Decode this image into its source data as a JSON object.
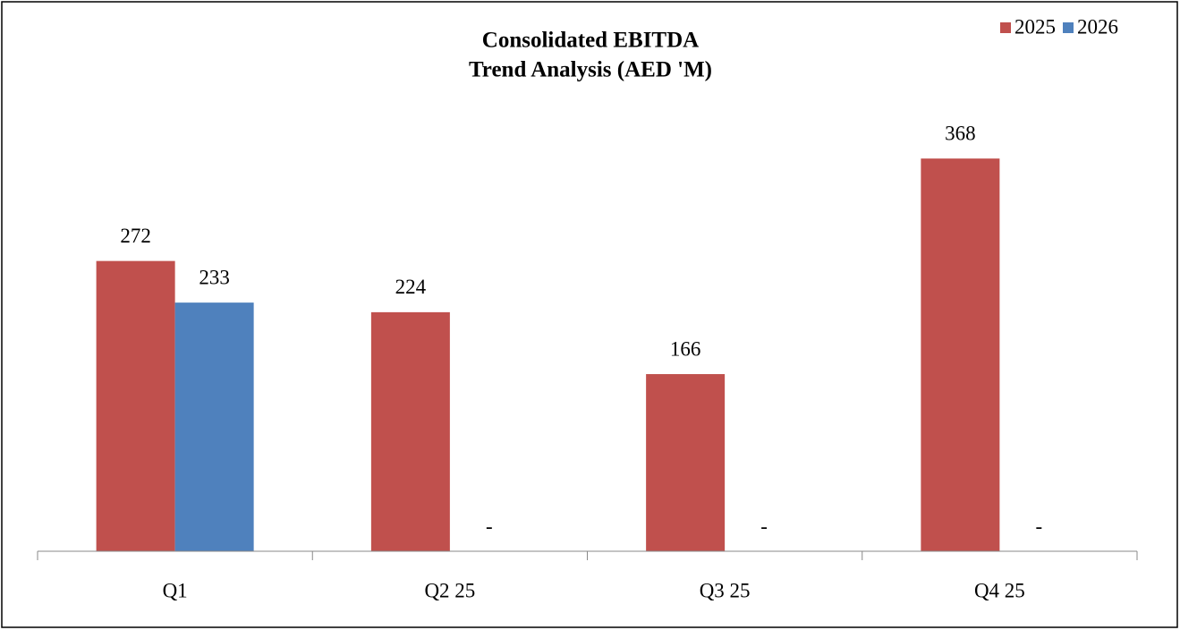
{
  "chart_data": {
    "type": "bar",
    "title": [
      "Consolidated EBITDA",
      "Trend Analysis (AED 'M)"
    ],
    "categories": [
      "Q1",
      "Q2 25",
      "Q3 25",
      "Q4 25"
    ],
    "series": [
      {
        "name": "2025",
        "color": "#c0504d",
        "values": [
          272,
          224,
          166,
          368
        ]
      },
      {
        "name": "2026",
        "color": "#4f81bd",
        "values": [
          233,
          0,
          0,
          0
        ],
        "value_labels": [
          "233",
          "-",
          "-",
          "-"
        ]
      }
    ],
    "ylim": [
      0,
      400
    ],
    "legend": "top-right"
  }
}
